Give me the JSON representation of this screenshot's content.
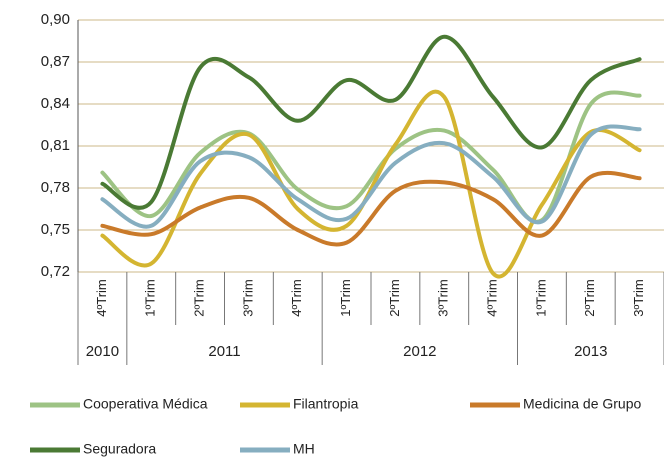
{
  "chart_data": {
    "type": "line",
    "categories": [
      "4ºTrim",
      "1ºTrim",
      "2ºTrim",
      "3ºTrim",
      "4ºTrim",
      "1ºTrim",
      "2ºTrim",
      "3ºTrim",
      "4ºTrim",
      "1ºTrim",
      "2ºTrim",
      "3ºTrim"
    ],
    "groups": [
      {
        "label": "2010",
        "count": 1
      },
      {
        "label": "2011",
        "count": 4
      },
      {
        "label": "2012",
        "count": 4
      },
      {
        "label": "2013",
        "count": 3
      }
    ],
    "series": [
      {
        "name": "Cooperativa Médica",
        "color": "#9dc384",
        "values": [
          0.791,
          0.76,
          0.805,
          0.819,
          0.779,
          0.767,
          0.808,
          0.821,
          0.793,
          0.757,
          0.84,
          0.846
        ]
      },
      {
        "name": "Filantropia",
        "color": "#d4b531",
        "values": [
          0.746,
          0.726,
          0.79,
          0.818,
          0.765,
          0.753,
          0.811,
          0.845,
          0.719,
          0.768,
          0.82,
          0.807
        ]
      },
      {
        "name": "Medicina de Grupo",
        "color": "#c97a2a",
        "values": [
          0.753,
          0.747,
          0.766,
          0.773,
          0.75,
          0.741,
          0.778,
          0.784,
          0.772,
          0.746,
          0.788,
          0.787
        ]
      },
      {
        "name": "Seguradora",
        "color": "#4a7a34",
        "values": [
          0.783,
          0.77,
          0.866,
          0.859,
          0.828,
          0.857,
          0.843,
          0.888,
          0.845,
          0.809,
          0.857,
          0.872
        ]
      },
      {
        "name": "MH",
        "color": "#86aec0",
        "values": [
          0.772,
          0.753,
          0.799,
          0.802,
          0.772,
          0.758,
          0.798,
          0.812,
          0.788,
          0.756,
          0.818,
          0.822
        ]
      }
    ],
    "ylim": [
      0.72,
      0.9
    ],
    "yticks": [
      {
        "value": 0.72,
        "label": "0,72"
      },
      {
        "value": 0.75,
        "label": "0,75"
      },
      {
        "value": 0.78,
        "label": "0,78"
      },
      {
        "value": 0.81,
        "label": "0,81"
      },
      {
        "value": 0.84,
        "label": "0,84"
      },
      {
        "value": 0.87,
        "label": "0,87"
      },
      {
        "value": 0.9,
        "label": "0,90"
      }
    ],
    "grid": true
  }
}
